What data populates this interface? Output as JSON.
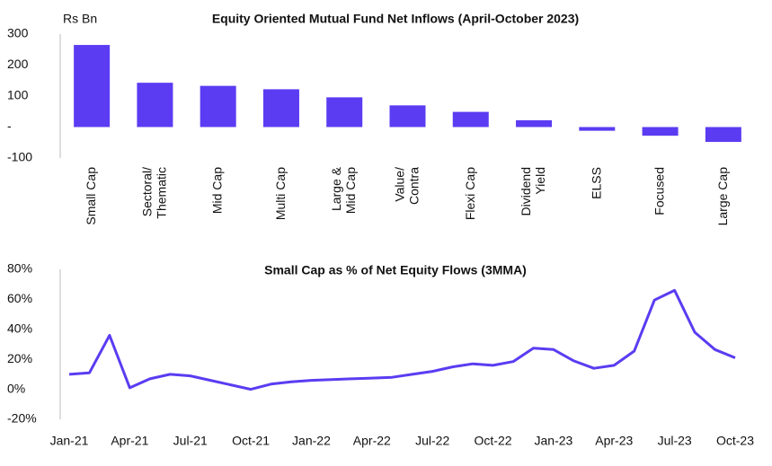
{
  "chart_data": [
    {
      "type": "bar",
      "title": "Equity Oriented Mutual Fund Net Inflows (April-October 2023)",
      "y_label": "Rs Bn",
      "categories": [
        "Small Cap",
        "Sectoral/\nThematic",
        "Mid Cap",
        "Multi Cap",
        "Large &\nMid Cap",
        "Value/\nContra",
        "Flexi Cap",
        "Dividend\nYield",
        "ELSS",
        "Focused",
        "Large Cap"
      ],
      "values": [
        265,
        143,
        133,
        122,
        96,
        70,
        49,
        22,
        -12,
        -28,
        -48
      ],
      "color": "#5b3cf2",
      "ylim": [
        -100,
        300
      ],
      "yticks": [
        300,
        200,
        100,
        {
          "value": 0,
          "label": "-"
        },
        -100
      ]
    },
    {
      "type": "line",
      "title": "Small Cap as % of Net Equity Flows (3MMA)",
      "categories": [
        "Jan-21",
        null,
        null,
        "Apr-21",
        null,
        null,
        "Jul-21",
        null,
        null,
        "Oct-21",
        null,
        null,
        "Jan-22",
        null,
        null,
        "Apr-22",
        null,
        null,
        "Jul-22",
        null,
        null,
        "Oct-22",
        null,
        null,
        "Jan-23",
        null,
        null,
        "Apr-23",
        null,
        null,
        "Jul-23",
        null,
        null,
        "Oct-23"
      ],
      "values": [
        10,
        11,
        36,
        1,
        7,
        10,
        9,
        6,
        3,
        0,
        3.5,
        5,
        6,
        6.5,
        7,
        7.5,
        8,
        10,
        12,
        15,
        17,
        16,
        18.5,
        27.5,
        26.5,
        19,
        14,
        16,
        25.5,
        59.5,
        66,
        38,
        26.5,
        21
      ],
      "color": "#5b3cf2",
      "ylim": [
        -20,
        80
      ],
      "yticks": [
        {
          "value": 80,
          "label": "80%"
        },
        {
          "value": 60,
          "label": "60%"
        },
        {
          "value": 40,
          "label": "40%"
        },
        {
          "value": 20,
          "label": "20%"
        },
        {
          "value": 0,
          "label": "0%"
        },
        {
          "value": -20,
          "label": "-20%"
        }
      ]
    }
  ]
}
